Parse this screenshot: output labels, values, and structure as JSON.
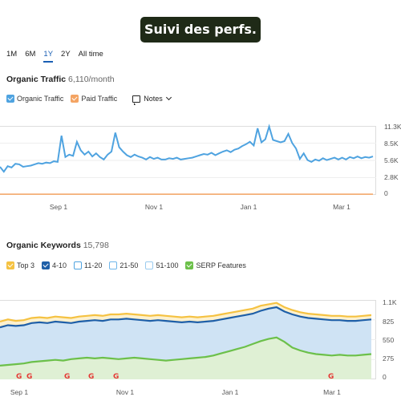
{
  "banner": {
    "text": "Suivi des perfs."
  },
  "periods": [
    {
      "label": "1M",
      "active": false
    },
    {
      "label": "6M",
      "active": false
    },
    {
      "label": "1Y",
      "active": true
    },
    {
      "label": "2Y",
      "active": false
    },
    {
      "label": "All time",
      "active": false
    }
  ],
  "traffic": {
    "title": "Organic Traffic",
    "metric": "6,110/month",
    "legend": [
      {
        "label": "Organic Traffic",
        "color": "#4fa3e0",
        "checked": true
      },
      {
        "label": "Paid Traffic",
        "color": "#f4a463",
        "checked": true
      }
    ],
    "notes_label": "Notes",
    "y_ticks": [
      "11.3K",
      "8.5K",
      "5.6K",
      "2.8K",
      "0"
    ],
    "x_ticks": [
      "Sep 1",
      "Nov 1",
      "Jan 1",
      "Mar 1"
    ]
  },
  "keywords": {
    "title": "Organic Keywords",
    "metric": "15,798",
    "legend": [
      {
        "label": "Top 3",
        "color": "#f5c242",
        "checked": true
      },
      {
        "label": "4-10",
        "color": "#1e5fa8",
        "checked": true
      },
      {
        "label": "11-20",
        "color": "#4fa3e0",
        "checked": false
      },
      {
        "label": "21-50",
        "color": "#6fb6ea",
        "checked": false
      },
      {
        "label": "51-100",
        "color": "#9acbef",
        "checked": false
      },
      {
        "label": "SERP Features",
        "color": "#6cc04a",
        "checked": true
      }
    ],
    "y_ticks": [
      "1.1K",
      "825",
      "550",
      "275",
      "0"
    ],
    "x_ticks": [
      "Sep 1",
      "Nov 1",
      "Jan 1",
      "Mar 1"
    ],
    "g_marker": "G"
  },
  "chart_data": [
    {
      "type": "line",
      "title": "Organic Traffic",
      "ylim": [
        0,
        11300
      ],
      "x_ticks": [
        "Sep 1",
        "Nov 1",
        "Jan 1",
        "Mar 1"
      ],
      "series": [
        {
          "name": "Organic Traffic",
          "color": "#4fa3e0",
          "values": [
            4600,
            3800,
            4700,
            4500,
            5100,
            5000,
            4600,
            4700,
            4800,
            5000,
            5200,
            5100,
            5300,
            5200,
            5500,
            5400,
            9700,
            6200,
            6600,
            6400,
            8700,
            7300,
            6600,
            7100,
            6300,
            6800,
            6200,
            5800,
            6600,
            7100,
            10200,
            7800,
            7100,
            6500,
            6200,
            6600,
            6300,
            6100,
            5800,
            6200,
            5900,
            6100,
            5800,
            5800,
            6000,
            5900,
            6100,
            5800,
            5900,
            6000,
            6100,
            6300,
            6500,
            6700,
            6600,
            6900,
            6500,
            6800,
            7100,
            7300,
            7000,
            7400,
            7600,
            8000,
            8300,
            8700,
            8100,
            10900,
            8600,
            9100,
            11200,
            9000,
            8800,
            8600,
            8800,
            10000,
            8500,
            7600,
            5900,
            6800,
            5700,
            5400,
            5800,
            5600,
            6000,
            5700,
            5900,
            6100,
            5800,
            6100,
            5800,
            6200,
            6000,
            6300,
            6000,
            6200,
            6100,
            6300
          ]
        },
        {
          "name": "Paid Traffic",
          "color": "#f4a463",
          "values": [
            120,
            120,
            120,
            120,
            120,
            120,
            120,
            120,
            120,
            120,
            120,
            120,
            120,
            120,
            120,
            120,
            120,
            120,
            120,
            120,
            120,
            120,
            120,
            120,
            120,
            120,
            120,
            120,
            120,
            120,
            120,
            120,
            120,
            120,
            120,
            120,
            120,
            120,
            120,
            120,
            120,
            120,
            120,
            120,
            120,
            120,
            120,
            120,
            120,
            120,
            120,
            120,
            120,
            120,
            120,
            120,
            120,
            120,
            120,
            120,
            120,
            120,
            120,
            120,
            120,
            120,
            120,
            120,
            120,
            120,
            120,
            120,
            120,
            120,
            120,
            120,
            120,
            120,
            120,
            120,
            120,
            120,
            120,
            120,
            120,
            120,
            120,
            120,
            120,
            120,
            120,
            120,
            120,
            120,
            120,
            120,
            120,
            120
          ]
        }
      ]
    },
    {
      "type": "area",
      "title": "Organic Keywords",
      "ylim": [
        0,
        1100
      ],
      "x_ticks": [
        "Sep 1",
        "Nov 1",
        "Jan 1",
        "Mar 1"
      ],
      "series": [
        {
          "name": "Top 3",
          "color": "#f5c242",
          "values": [
            800,
            830,
            810,
            820,
            850,
            860,
            850,
            870,
            860,
            850,
            870,
            880,
            890,
            880,
            900,
            900,
            910,
            900,
            890,
            880,
            890,
            880,
            870,
            860,
            870,
            860,
            870,
            880,
            900,
            920,
            940,
            960,
            980,
            1020,
            1040,
            1060,
            1000,
            960,
            930,
            910,
            900,
            890,
            880,
            880,
            870,
            870,
            880,
            890
          ]
        },
        {
          "name": "4-10",
          "color": "#1e5fa8",
          "values": [
            720,
            750,
            740,
            750,
            780,
            790,
            780,
            800,
            790,
            780,
            800,
            810,
            820,
            810,
            830,
            830,
            840,
            830,
            820,
            810,
            820,
            810,
            800,
            790,
            800,
            790,
            800,
            810,
            830,
            850,
            870,
            890,
            910,
            950,
            980,
            1000,
            940,
            900,
            870,
            850,
            840,
            830,
            820,
            820,
            810,
            810,
            820,
            830
          ]
        },
        {
          "name": "SERP Features",
          "color": "#6cc04a",
          "values": [
            190,
            200,
            210,
            220,
            240,
            250,
            260,
            270,
            260,
            280,
            290,
            300,
            290,
            300,
            290,
            280,
            290,
            300,
            290,
            280,
            270,
            260,
            270,
            280,
            290,
            300,
            310,
            330,
            360,
            390,
            420,
            450,
            490,
            530,
            560,
            580,
            520,
            440,
            400,
            370,
            350,
            340,
            330,
            340,
            330,
            330,
            340,
            350
          ]
        }
      ]
    }
  ]
}
